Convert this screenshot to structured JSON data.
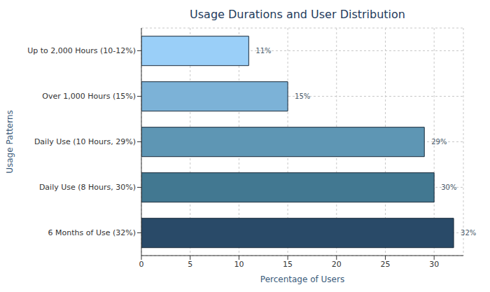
{
  "chart_data": {
    "type": "bar",
    "title": "Usage Durations and User Distribution",
    "x_label": "Percentage of Users",
    "y_label": "Usage Patterns",
    "orientation": "horizontal",
    "categories": [
      "Up to 2,000 Hours (10-12%)",
      "Over 1,000 Hours (15%)",
      "Daily Use (10 Hours, 29%)",
      "Daily Use (8 Hours, 30%)",
      "6 Months of Use (32%)"
    ],
    "values": [
      11,
      15,
      29,
      30,
      32
    ],
    "value_labels": [
      "11%",
      "15%",
      "29%",
      "30%",
      "32%"
    ],
    "colors": [
      "#9acff8",
      "#7cb2d7",
      "#5e96b4",
      "#427891",
      "#294a68"
    ],
    "xlim": [
      0,
      33
    ],
    "xticks": [
      0,
      5,
      10,
      15,
      20,
      25,
      30
    ],
    "grid": true,
    "data_labels": true
  }
}
